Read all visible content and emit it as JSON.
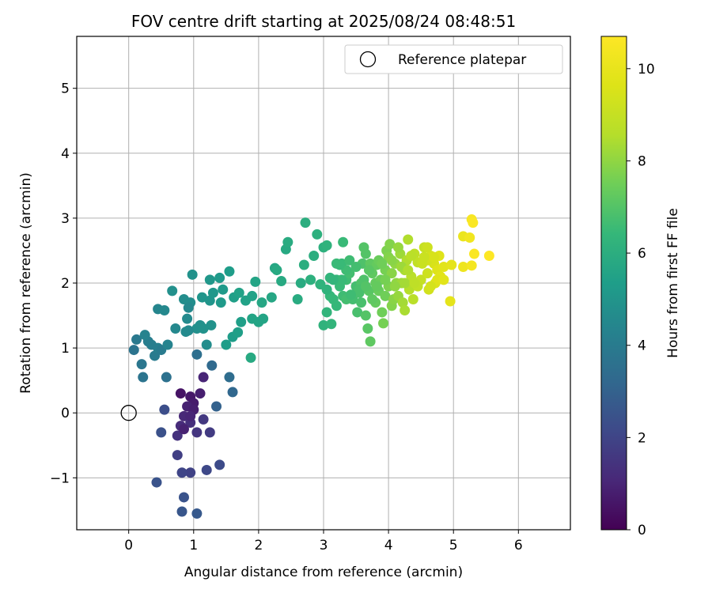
{
  "chart_data": {
    "type": "scatter",
    "title": "FOV centre drift starting at 2025/08/24 08:48:51",
    "xlabel": "Angular distance from reference (arcmin)",
    "ylabel": "Rotation from reference (arcmin)",
    "xlim": [
      -0.8,
      6.8
    ],
    "ylim": [
      -1.8,
      5.8
    ],
    "xticks": [
      0,
      1,
      2,
      3,
      4,
      5,
      6
    ],
    "yticks": [
      -1,
      0,
      1,
      2,
      3,
      4,
      5
    ],
    "xtick_labels": [
      "0",
      "1",
      "2",
      "3",
      "4",
      "5",
      "6"
    ],
    "ytick_labels": [
      "−1",
      "0",
      "1",
      "2",
      "3",
      "4",
      "5"
    ],
    "grid": true,
    "legend": {
      "position": "top-right",
      "entries": [
        "Reference platepar"
      ]
    },
    "reference_point": {
      "x": 0,
      "y": 0,
      "label": "Reference platepar"
    },
    "colorbar": {
      "label": "Hours from first FF file",
      "range": [
        0,
        10.7
      ],
      "ticks": [
        0,
        2,
        4,
        6,
        8,
        10
      ],
      "tick_labels": [
        "0",
        "2",
        "4",
        "6",
        "8",
        "10"
      ],
      "colormap": "viridis"
    },
    "points": [
      [
        0.8,
        0.3,
        0.5
      ],
      [
        0.95,
        0.25,
        0.6
      ],
      [
        1.0,
        0.15,
        0.7
      ],
      [
        1.1,
        0.3,
        0.8
      ],
      [
        0.9,
        0.1,
        0.9
      ],
      [
        1.15,
        0.55,
        1.0
      ],
      [
        0.85,
        -0.05,
        1.1
      ],
      [
        1.0,
        0.05,
        0.8
      ],
      [
        0.8,
        -0.2,
        1.2
      ],
      [
        0.95,
        -0.15,
        1.3
      ],
      [
        0.75,
        -0.35,
        1.4
      ],
      [
        1.05,
        -0.3,
        1.5
      ],
      [
        0.85,
        -0.25,
        0.9
      ],
      [
        1.15,
        -0.1,
        1.6
      ],
      [
        0.95,
        -0.05,
        1.0
      ],
      [
        1.25,
        -0.3,
        1.7
      ],
      [
        0.75,
        -0.65,
        1.8
      ],
      [
        0.95,
        -0.92,
        1.9
      ],
      [
        0.82,
        -0.92,
        2.0
      ],
      [
        1.2,
        -0.88,
        2.1
      ],
      [
        1.4,
        -0.8,
        2.2
      ],
      [
        0.55,
        0.05,
        2.3
      ],
      [
        0.5,
        -0.3,
        2.4
      ],
      [
        0.85,
        -1.3,
        2.5
      ],
      [
        0.82,
        -1.52,
        2.6
      ],
      [
        1.05,
        -1.55,
        2.7
      ],
      [
        0.43,
        -1.07,
        2.5
      ],
      [
        1.35,
        0.1,
        3.0
      ],
      [
        1.6,
        0.32,
        3.2
      ],
      [
        1.28,
        0.73,
        3.3
      ],
      [
        1.55,
        0.55,
        3.4
      ],
      [
        1.05,
        0.9,
        3.5
      ],
      [
        0.58,
        0.55,
        3.6
      ],
      [
        0.22,
        0.55,
        3.7
      ],
      [
        0.2,
        0.75,
        3.8
      ],
      [
        0.12,
        1.13,
        3.9
      ],
      [
        0.08,
        0.97,
        3.7
      ],
      [
        0.4,
        0.88,
        4.0
      ],
      [
        0.3,
        1.1,
        4.1
      ],
      [
        0.45,
        1.0,
        4.2
      ],
      [
        0.25,
        1.2,
        4.3
      ],
      [
        0.5,
        0.97,
        4.0
      ],
      [
        0.35,
        1.05,
        4.1
      ],
      [
        0.45,
        1.6,
        4.4
      ],
      [
        0.55,
        1.58,
        4.5
      ],
      [
        0.72,
        1.3,
        4.5
      ],
      [
        0.88,
        1.25,
        4.6
      ],
      [
        0.9,
        1.45,
        4.6
      ],
      [
        0.85,
        1.75,
        4.7
      ],
      [
        0.95,
        1.7,
        4.7
      ],
      [
        0.92,
        1.62,
        4.5
      ],
      [
        0.67,
        1.88,
        4.8
      ],
      [
        0.98,
        2.13,
        4.9
      ],
      [
        1.1,
        1.35,
        4.8
      ],
      [
        1.2,
        1.05,
        4.7
      ],
      [
        1.27,
        1.35,
        4.9
      ],
      [
        1.13,
        1.78,
        5.0
      ],
      [
        1.25,
        1.73,
        5.0
      ],
      [
        1.3,
        1.85,
        5.1
      ],
      [
        1.25,
        2.05,
        5.1
      ],
      [
        1.4,
        2.08,
        5.2
      ],
      [
        1.45,
        1.9,
        5.2
      ],
      [
        1.42,
        1.7,
        5.2
      ],
      [
        1.55,
        2.18,
        5.3
      ],
      [
        1.5,
        1.05,
        5.3
      ],
      [
        1.6,
        1.17,
        5.3
      ],
      [
        1.68,
        1.24,
        5.4
      ],
      [
        1.73,
        1.4,
        5.4
      ],
      [
        1.62,
        1.78,
        5.4
      ],
      [
        1.7,
        1.85,
        5.5
      ],
      [
        1.8,
        1.73,
        5.5
      ],
      [
        1.9,
        1.8,
        5.5
      ],
      [
        1.95,
        2.02,
        5.6
      ],
      [
        1.9,
        1.45,
        5.6
      ],
      [
        2.0,
        1.4,
        5.6
      ],
      [
        2.07,
        1.45,
        5.6
      ],
      [
        2.05,
        1.7,
        5.7
      ],
      [
        2.2,
        1.78,
        5.7
      ],
      [
        2.25,
        2.23,
        5.7
      ],
      [
        2.28,
        2.2,
        5.8
      ],
      [
        1.88,
        0.85,
        5.8
      ],
      [
        2.42,
        2.52,
        5.8
      ],
      [
        2.45,
        2.63,
        5.9
      ],
      [
        2.35,
        2.03,
        5.8
      ],
      [
        2.6,
        1.75,
        5.9
      ],
      [
        2.65,
        2.0,
        5.9
      ],
      [
        2.7,
        2.28,
        6.0
      ],
      [
        2.72,
        2.93,
        6.0
      ],
      [
        2.85,
        2.42,
        6.0
      ],
      [
        2.9,
        2.75,
        6.1
      ],
      [
        3.0,
        2.55,
        6.1
      ],
      [
        3.05,
        2.58,
        6.2
      ],
      [
        2.8,
        2.05,
        6.1
      ],
      [
        2.95,
        1.98,
        6.2
      ],
      [
        3.0,
        1.35,
        6.2
      ],
      [
        3.12,
        1.37,
        6.3
      ],
      [
        3.05,
        1.55,
        6.3
      ],
      [
        3.1,
        1.8,
        6.4
      ],
      [
        3.15,
        1.75,
        6.4
      ],
      [
        3.2,
        2.05,
        6.4
      ],
      [
        3.2,
        2.3,
        6.5
      ],
      [
        3.28,
        2.3,
        6.5
      ],
      [
        3.3,
        2.63,
        6.5
      ],
      [
        3.25,
        1.95,
        6.5
      ],
      [
        3.3,
        1.8,
        6.6
      ],
      [
        3.35,
        2.05,
        6.6
      ],
      [
        3.4,
        2.35,
        6.6
      ],
      [
        3.45,
        1.75,
        6.7
      ],
      [
        3.35,
        1.75,
        6.7
      ],
      [
        3.5,
        1.95,
        6.7
      ],
      [
        3.52,
        1.55,
        6.8
      ],
      [
        3.55,
        1.85,
        6.8
      ],
      [
        3.58,
        2.0,
        6.9
      ],
      [
        3.6,
        2.3,
        6.9
      ],
      [
        3.62,
        2.55,
        7.0
      ],
      [
        3.65,
        2.45,
        7.0
      ],
      [
        3.65,
        1.5,
        7.0
      ],
      [
        3.68,
        1.3,
        7.1
      ],
      [
        3.72,
        1.1,
        7.2
      ],
      [
        3.7,
        1.88,
        7.1
      ],
      [
        3.75,
        2.15,
        7.2
      ],
      [
        3.72,
        2.3,
        7.2
      ],
      [
        3.8,
        1.7,
        7.3
      ],
      [
        3.8,
        2.0,
        7.3
      ],
      [
        3.82,
        2.28,
        7.3
      ],
      [
        3.85,
        1.88,
        7.4
      ],
      [
        3.88,
        2.05,
        7.4
      ],
      [
        3.9,
        1.55,
        7.5
      ],
      [
        3.92,
        1.38,
        7.6
      ],
      [
        3.95,
        1.8,
        7.5
      ],
      [
        3.95,
        2.2,
        7.6
      ],
      [
        3.97,
        2.5,
        7.7
      ],
      [
        4.0,
        1.95,
        7.7
      ],
      [
        4.02,
        2.6,
        7.8
      ],
      [
        4.05,
        1.65,
        7.8
      ],
      [
        4.05,
        2.15,
        7.9
      ],
      [
        4.08,
        1.75,
        7.9
      ],
      [
        4.1,
        2.3,
        8.0
      ],
      [
        4.12,
        2.0,
        8.0
      ],
      [
        4.15,
        1.8,
        8.1
      ],
      [
        4.18,
        2.45,
        8.2
      ],
      [
        4.2,
        2.0,
        8.2
      ],
      [
        4.22,
        1.7,
        8.3
      ],
      [
        4.25,
        1.58,
        8.4
      ],
      [
        4.25,
        2.2,
        8.4
      ],
      [
        4.28,
        2.35,
        8.5
      ],
      [
        4.3,
        2.67,
        8.5
      ],
      [
        4.32,
        1.9,
        8.6
      ],
      [
        4.35,
        2.1,
        8.7
      ],
      [
        4.38,
        1.75,
        8.7
      ],
      [
        4.4,
        2.45,
        8.8
      ],
      [
        4.45,
        2.32,
        8.9
      ],
      [
        4.5,
        2.05,
        9.0
      ],
      [
        4.55,
        2.55,
        9.0
      ],
      [
        4.6,
        2.15,
        9.2
      ],
      [
        4.62,
        1.9,
        9.3
      ],
      [
        4.65,
        2.42,
        9.4
      ],
      [
        4.7,
        2.3,
        9.5
      ],
      [
        4.72,
        2.0,
        9.6
      ],
      [
        4.75,
        2.2,
        9.7
      ],
      [
        4.78,
        2.42,
        9.7
      ],
      [
        4.8,
        2.1,
        9.8
      ],
      [
        4.85,
        2.25,
        9.8
      ],
      [
        4.95,
        1.72,
        9.9
      ],
      [
        4.97,
        2.28,
        9.9
      ],
      [
        5.15,
        2.72,
        10.1
      ],
      [
        5.15,
        2.25,
        10.2
      ],
      [
        5.25,
        2.7,
        10.3
      ],
      [
        5.28,
        2.27,
        10.4
      ],
      [
        5.28,
        2.98,
        10.5
      ],
      [
        5.3,
        2.93,
        10.6
      ],
      [
        5.32,
        2.45,
        10.6
      ],
      [
        5.55,
        2.42,
        10.7
      ],
      [
        3.55,
        1.9,
        6.8
      ],
      [
        3.4,
        2.15,
        6.7
      ],
      [
        3.1,
        2.08,
        6.3
      ],
      [
        3.05,
        1.9,
        6.2
      ],
      [
        3.2,
        1.65,
        6.4
      ],
      [
        3.58,
        1.7,
        6.8
      ],
      [
        3.85,
        2.35,
        7.4
      ],
      [
        4.15,
        2.55,
        8.1
      ],
      [
        4.35,
        2.42,
        8.7
      ],
      [
        4.0,
        2.4,
        7.8
      ],
      [
        3.75,
        1.75,
        7.2
      ],
      [
        3.62,
        2.05,
        6.9
      ],
      [
        4.05,
        2.35,
        7.9
      ],
      [
        4.45,
        1.95,
        8.9
      ],
      [
        4.6,
        2.35,
        9.3
      ],
      [
        4.75,
        2.05,
        9.7
      ],
      [
        4.52,
        2.3,
        9.1
      ],
      [
        4.25,
        2.0,
        8.3
      ],
      [
        3.95,
        2.05,
        7.6
      ],
      [
        3.9,
        2.3,
        7.5
      ],
      [
        4.1,
        1.95,
        8.0
      ],
      [
        4.2,
        2.25,
        8.2
      ],
      [
        3.7,
        2.2,
        7.1
      ],
      [
        3.5,
        2.25,
        6.7
      ],
      [
        3.35,
        2.2,
        6.6
      ],
      [
        3.28,
        2.05,
        6.5
      ],
      [
        3.42,
        1.82,
        6.6
      ],
      [
        3.65,
        1.95,
        7.0
      ],
      [
        3.82,
        1.95,
        7.3
      ],
      [
        4.3,
        2.2,
        8.5
      ],
      [
        4.6,
        2.55,
        9.2
      ],
      [
        4.7,
        2.4,
        9.5
      ],
      [
        4.85,
        2.05,
        9.8
      ],
      [
        4.65,
        1.95,
        9.4
      ],
      [
        4.55,
        2.4,
        9.1
      ],
      [
        4.4,
        2.0,
        8.8
      ],
      [
        3.15,
        2.05,
        6.3
      ],
      [
        3.25,
        2.28,
        6.5
      ],
      [
        1.05,
        1.3,
        4.8
      ],
      [
        1.15,
        1.3,
        4.9
      ],
      [
        0.92,
        1.27,
        4.6
      ],
      [
        0.6,
        1.05,
        4.3
      ]
    ]
  }
}
